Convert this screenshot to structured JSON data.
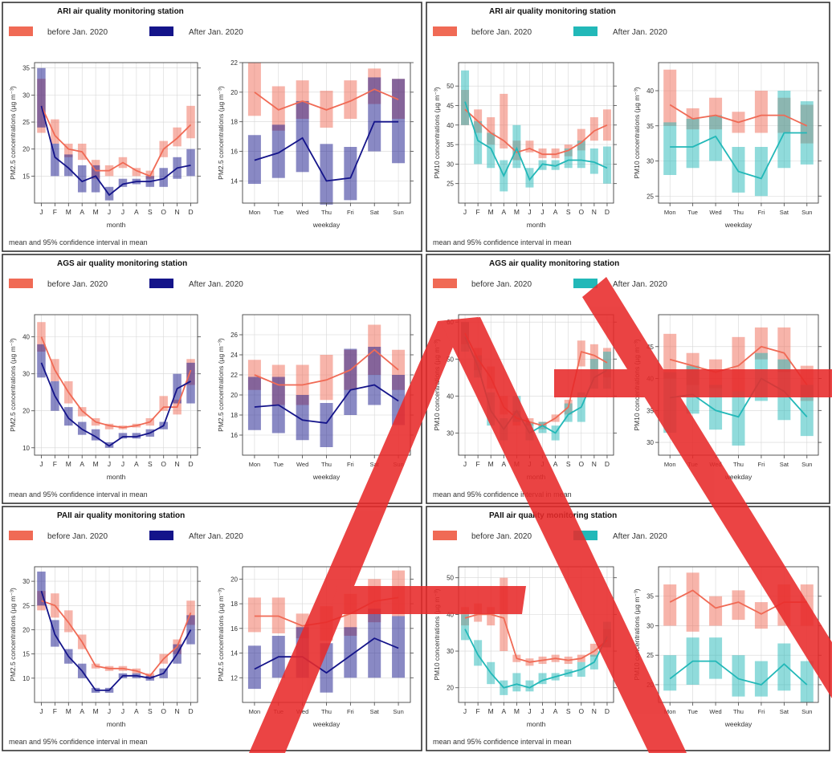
{
  "colors": {
    "before": "#f06a55",
    "after_pm25": "#14148a",
    "after_pm10": "#22b8b8",
    "grid": "#d6d6d6",
    "frame": "#333333",
    "watermark": "#e82a2a"
  },
  "common": {
    "legend_before": "before Jan. 2020",
    "legend_after": "After Jan. 2020",
    "month_xlabel": "month",
    "weekday_xlabel": "weekday",
    "caption": "mean and 95% confidence interval in mean",
    "ylabel_pm25": "PM2.5 concentrations (µg m⁻³)",
    "ylabel_pm10": "PM10 concentrations (µg m⁻³)",
    "months": [
      "J",
      "F",
      "M",
      "A",
      "M",
      "J",
      "J",
      "A",
      "S",
      "O",
      "N",
      "D"
    ],
    "weekdays": [
      "Mon",
      "Tue",
      "Wed",
      "Thu",
      "Fri",
      "Sat",
      "Sun"
    ]
  },
  "chart_data": [
    {
      "type": "line",
      "panel": "ARI PM2.5",
      "title": "ARI air quality monitoring station",
      "month": {
        "ylim": [
          10,
          36
        ],
        "yticks": [
          15,
          20,
          25,
          30,
          35
        ],
        "before_mean": [
          28,
          22.5,
          20,
          19.5,
          16,
          16,
          17.5,
          16,
          15,
          20,
          22,
          24.5
        ],
        "before_low": [
          23,
          21,
          18.5,
          18,
          14.5,
          15,
          16.5,
          15,
          14.5,
          18.5,
          20.5,
          22
        ],
        "before_high": [
          33,
          25.5,
          21,
          21,
          18,
          17,
          18.5,
          16.5,
          16,
          21.5,
          24,
          28
        ],
        "after_mean": [
          28,
          18.5,
          16.5,
          14,
          15,
          11.5,
          13.5,
          14,
          14,
          14.5,
          16.5,
          17
        ],
        "after_low": [
          24,
          15,
          15,
          12,
          12,
          10.5,
          13,
          13.5,
          13,
          13,
          14.5,
          15
        ],
        "after_high": [
          35,
          21,
          19,
          17,
          17,
          13,
          14.5,
          14.5,
          15,
          16.5,
          18.5,
          20
        ]
      },
      "weekday": {
        "ylim": [
          12.5,
          22
        ],
        "yticks": [
          14,
          16,
          18,
          20,
          22
        ],
        "before_mean": [
          20,
          18.8,
          19.4,
          18.8,
          19.4,
          20.2,
          19.5
        ],
        "before_low": [
          18.4,
          17.4,
          18.2,
          17.6,
          18.2,
          19.2,
          18.2
        ],
        "before_high": [
          22,
          20.4,
          20.8,
          20.1,
          20.8,
          21.6,
          20.9
        ],
        "after_mean": [
          15.4,
          15.9,
          16.9,
          14,
          14.2,
          18,
          18
        ],
        "after_low": [
          13.8,
          14.2,
          14.6,
          12.4,
          12.7,
          16,
          15.2
        ],
        "after_high": [
          17.1,
          17.8,
          19.4,
          16.5,
          16.3,
          21,
          20.9
        ]
      }
    },
    {
      "type": "line",
      "panel": "ARI PM10",
      "title": "ARI air quality monitoring station",
      "month": {
        "ylim": [
          20,
          56
        ],
        "yticks": [
          25,
          30,
          35,
          40,
          45,
          50
        ],
        "before_mean": [
          44,
          41,
          38,
          36,
          33,
          34,
          32.5,
          32.5,
          33.5,
          35.5,
          38.5,
          40
        ],
        "before_low": [
          40,
          38,
          35,
          34,
          31,
          33,
          31.5,
          31.5,
          32,
          33.5,
          36,
          36
        ],
        "before_high": [
          49,
          44,
          42,
          48,
          36,
          36,
          34,
          34,
          35,
          39,
          42,
          44
        ],
        "after_mean": [
          46,
          36,
          34,
          27,
          34,
          26,
          30,
          29.5,
          31,
          31,
          30.5,
          29
        ],
        "after_low": [
          40,
          30,
          29,
          23,
          29,
          24,
          28.5,
          28.5,
          29,
          29,
          27.5,
          25
        ],
        "after_high": [
          54,
          41,
          38,
          31,
          40,
          29,
          31,
          31,
          34,
          36,
          34,
          34.5
        ]
      },
      "weekday": {
        "ylim": [
          24,
          44
        ],
        "yticks": [
          25,
          30,
          35,
          40
        ],
        "before_mean": [
          38,
          36,
          36.5,
          35.5,
          36.5,
          36.5,
          35
        ],
        "before_low": [
          35,
          34.5,
          34.5,
          34,
          34,
          34,
          32.5
        ],
        "before_high": [
          43,
          37.5,
          39,
          37,
          40,
          39,
          38
        ],
        "after_mean": [
          32,
          32,
          33.5,
          28.5,
          27.5,
          34,
          34
        ],
        "after_low": [
          28,
          29,
          30,
          25.5,
          25,
          29,
          29.5
        ],
        "after_high": [
          35.5,
          36,
          36.5,
          32,
          32,
          40,
          38.5
        ]
      }
    },
    {
      "type": "line",
      "panel": "AGS PM2.5",
      "title": "AGS air quality monitoring station",
      "month": {
        "ylim": [
          8,
          46
        ],
        "yticks": [
          10,
          20,
          30,
          40
        ],
        "before_mean": [
          40,
          31,
          25,
          20,
          17,
          16,
          15.5,
          16,
          17,
          21,
          21,
          31
        ],
        "before_low": [
          36,
          28,
          22,
          18.5,
          16,
          15,
          15,
          15.5,
          16,
          20,
          19,
          27
        ],
        "before_high": [
          44,
          34,
          28,
          21,
          18,
          16.5,
          16,
          16.5,
          18,
          24,
          23,
          34
        ],
        "after_mean": [
          33,
          24,
          18,
          15,
          13,
          10.5,
          13,
          13,
          14,
          16,
          26,
          28
        ],
        "after_low": [
          29,
          20,
          16,
          13.5,
          12,
          10,
          12.5,
          12.5,
          13,
          15,
          22,
          22
        ],
        "after_high": [
          38,
          28,
          21,
          17,
          15,
          11.5,
          14,
          14,
          15,
          17,
          30,
          33
        ]
      },
      "weekday": {
        "ylim": [
          14,
          28
        ],
        "yticks": [
          16,
          18,
          20,
          22,
          24,
          26
        ],
        "before_mean": [
          22,
          21,
          21,
          21.5,
          22.5,
          24.5,
          22.5
        ],
        "before_low": [
          20.5,
          19,
          19,
          19.5,
          20.5,
          22,
          20.5
        ],
        "before_high": [
          23.5,
          23,
          23,
          24,
          24.5,
          27,
          24.5
        ],
        "after_mean": [
          18.8,
          19,
          17.5,
          17.2,
          20.5,
          21,
          19.4
        ],
        "after_low": [
          16.5,
          16.2,
          15.5,
          14.8,
          18,
          19,
          17
        ],
        "after_high": [
          21.8,
          21.8,
          20,
          19.2,
          24.6,
          24.8,
          22
        ]
      }
    },
    {
      "type": "line",
      "panel": "AGS PM10",
      "title": "AGS air quality monitoring station",
      "month": {
        "ylim": [
          24,
          62
        ],
        "yticks": [
          30,
          40,
          50,
          60
        ],
        "before_mean": [
          57,
          50,
          45,
          37,
          34,
          33,
          32,
          34,
          37,
          52,
          51,
          49
        ],
        "before_low": [
          54,
          47,
          42,
          35,
          32,
          32,
          31,
          33,
          35,
          48,
          47,
          45
        ],
        "before_high": [
          60,
          53,
          48,
          40,
          36,
          34,
          33,
          35,
          39,
          55,
          54,
          53
        ],
        "after_mean": [
          56,
          48,
          36,
          31,
          36,
          30,
          32,
          30,
          35,
          37,
          45,
          47
        ],
        "after_low": [
          52,
          45,
          32,
          28,
          33,
          28,
          30,
          28,
          33,
          33,
          42,
          42
        ],
        "after_high": [
          60,
          51,
          41,
          34,
          40,
          33,
          33,
          32,
          38,
          41,
          50,
          52
        ]
      },
      "weekday": {
        "ylim": [
          28,
          50
        ],
        "yticks": [
          30,
          35,
          40,
          45
        ],
        "before_mean": [
          43,
          42,
          41,
          42,
          45,
          44,
          39
        ],
        "before_low": [
          40,
          39,
          38.5,
          38,
          43,
          41,
          36.5
        ],
        "before_high": [
          47,
          44,
          43,
          46.5,
          48,
          48,
          42
        ],
        "after_mean": [
          37,
          37.5,
          35,
          34,
          40,
          38,
          34
        ],
        "after_low": [
          31.5,
          34.5,
          32,
          29.5,
          36.5,
          33.5,
          31
        ],
        "after_high": [
          41,
          42,
          39,
          38,
          44,
          43,
          39
        ]
      }
    },
    {
      "type": "line",
      "panel": "PAII PM2.5",
      "title": "PAII air quality monitoring station",
      "month": {
        "ylim": [
          5,
          33
        ],
        "yticks": [
          10,
          15,
          20,
          25,
          30
        ],
        "before_mean": [
          26,
          25,
          21.5,
          17.5,
          12.5,
          12,
          12,
          11.5,
          10.5,
          14,
          16.5,
          23.5
        ],
        "before_low": [
          24,
          22.5,
          19.5,
          16,
          12,
          11.5,
          11.5,
          11,
          10,
          13,
          15,
          21
        ],
        "before_high": [
          28,
          27.5,
          24,
          19,
          13,
          12.5,
          12.5,
          12,
          11,
          15,
          18,
          26
        ],
        "after_mean": [
          28,
          19,
          14.5,
          11.5,
          7.5,
          7.5,
          10.5,
          10.5,
          10,
          11,
          15,
          20
        ],
        "after_low": [
          25,
          16.5,
          13,
          10,
          7,
          7,
          10,
          10,
          9.5,
          10,
          13,
          17
        ],
        "after_high": [
          32,
          22,
          16,
          13,
          8,
          8,
          11,
          11,
          10.5,
          12,
          17,
          23
        ]
      },
      "weekday": {
        "ylim": [
          10,
          21
        ],
        "yticks": [
          12,
          14,
          16,
          18,
          20
        ],
        "before_mean": [
          17,
          17,
          16.2,
          16.5,
          17.2,
          18.2,
          18.5
        ],
        "before_low": [
          15.7,
          15.6,
          15.2,
          15,
          15.4,
          16.5,
          17
        ],
        "before_high": [
          18.5,
          18.5,
          17.2,
          17.8,
          18.8,
          20,
          20.7
        ],
        "after_mean": [
          12.7,
          13.7,
          13.7,
          12.4,
          13.8,
          15.2,
          14.4
        ],
        "after_low": [
          11.1,
          12,
          12,
          10.8,
          12,
          12,
          12
        ],
        "after_high": [
          14.6,
          15.4,
          16.1,
          14.8,
          16.1,
          17.6,
          17
        ]
      }
    },
    {
      "type": "line",
      "panel": "PAII PM10",
      "title": "PAII air quality monitoring station",
      "month": {
        "ylim": [
          16,
          53
        ],
        "yticks": [
          20,
          30,
          40,
          50
        ],
        "before_mean": [
          39,
          40,
          40,
          39,
          28,
          27,
          27.5,
          28,
          27.5,
          28,
          30,
          33
        ],
        "before_low": [
          37,
          38,
          37,
          30,
          27,
          26,
          26.5,
          27,
          26.5,
          27,
          28.5,
          31
        ],
        "before_high": [
          42,
          43,
          42,
          50,
          29,
          28,
          28.5,
          29,
          28.5,
          29,
          32,
          36
        ],
        "after_mean": [
          36,
          29,
          24,
          20,
          21,
          20,
          22,
          23,
          24,
          25,
          27,
          34
        ],
        "after_low": [
          33,
          26,
          21,
          18,
          19,
          19,
          21,
          22,
          23,
          23,
          25,
          31
        ],
        "after_high": [
          40,
          33,
          27,
          22,
          24,
          22,
          24,
          24,
          25,
          27,
          29,
          38
        ]
      },
      "weekday": {
        "ylim": [
          17,
          40
        ],
        "yticks": [
          20,
          25,
          30,
          35
        ],
        "before_mean": [
          34,
          36,
          33,
          34,
          32,
          34,
          34
        ],
        "before_low": [
          30,
          29,
          30,
          31,
          29.5,
          30,
          30
        ],
        "before_high": [
          37,
          39,
          35,
          36,
          34,
          37,
          37
        ],
        "after_mean": [
          21,
          24,
          24,
          21,
          20,
          23.5,
          20
        ],
        "after_low": [
          19,
          20,
          21,
          18,
          18,
          19,
          17
        ],
        "after_high": [
          25,
          28,
          28,
          25,
          24,
          27,
          24
        ]
      }
    }
  ]
}
